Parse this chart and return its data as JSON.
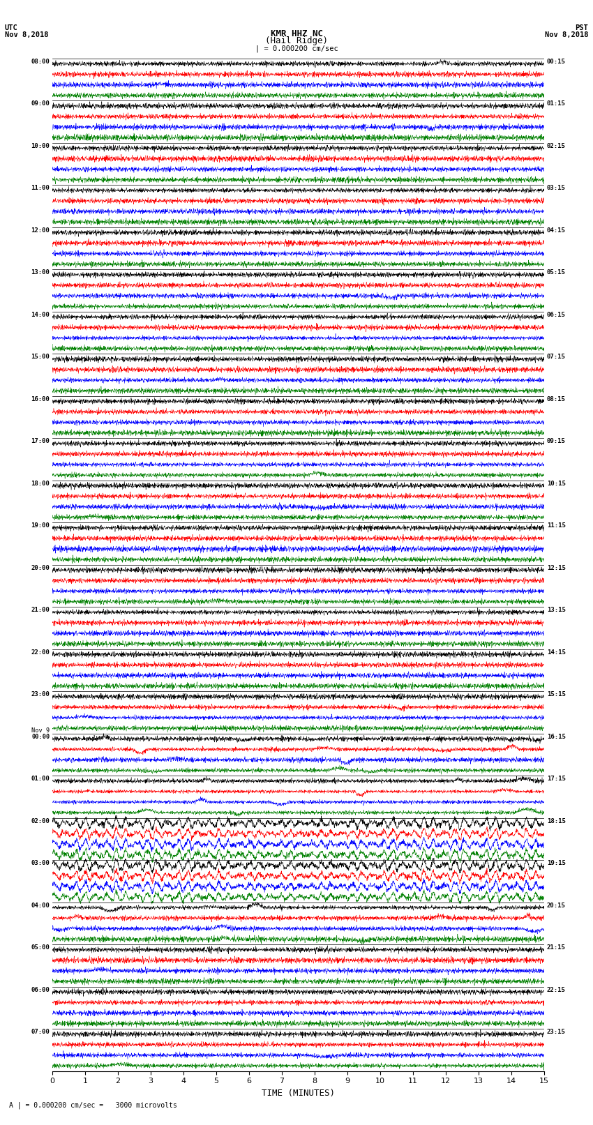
{
  "title_line1": "KMR HHZ NC",
  "title_line2": "(Hail Ridge)",
  "left_header_line1": "UTC",
  "left_header_line2": "Nov 8,2018",
  "right_header_line1": "PST",
  "right_header_line2": "Nov 8,2018",
  "scale_label": "| = 0.000200 cm/sec",
  "bottom_note": "A | = 0.000200 cm/sec =   3000 microvolts",
  "xlabel": "TIME (MINUTES)",
  "xlim": [
    0,
    15
  ],
  "xticks": [
    0,
    1,
    2,
    3,
    4,
    5,
    6,
    7,
    8,
    9,
    10,
    11,
    12,
    13,
    14,
    15
  ],
  "colors": [
    "black",
    "red",
    "blue",
    "green"
  ],
  "left_times": [
    "08:00",
    "09:00",
    "10:00",
    "11:00",
    "12:00",
    "13:00",
    "14:00",
    "15:00",
    "16:00",
    "17:00",
    "18:00",
    "19:00",
    "20:00",
    "21:00",
    "22:00",
    "23:00",
    "Nov 9\n00:00",
    "01:00",
    "02:00",
    "03:00",
    "04:00",
    "05:00",
    "06:00",
    "07:00"
  ],
  "right_times": [
    "00:15",
    "01:15",
    "02:15",
    "03:15",
    "04:15",
    "05:15",
    "06:15",
    "07:15",
    "08:15",
    "09:15",
    "10:15",
    "11:15",
    "12:15",
    "13:15",
    "14:15",
    "15:15",
    "16:15",
    "17:15",
    "18:15",
    "19:15",
    "20:15",
    "21:15",
    "22:15",
    "23:15"
  ],
  "n_hour_groups": 24,
  "traces_per_group": 4,
  "bg_color": "white",
  "separator_color": "black",
  "noise_seed": 12345,
  "fig_width": 8.5,
  "fig_height": 16.13,
  "dpi": 100,
  "large_event_groups": [
    18,
    19
  ],
  "medium_event_groups": [
    16,
    17,
    20
  ],
  "trace_amplitude": 0.42,
  "separator_linewidth": 0.5
}
